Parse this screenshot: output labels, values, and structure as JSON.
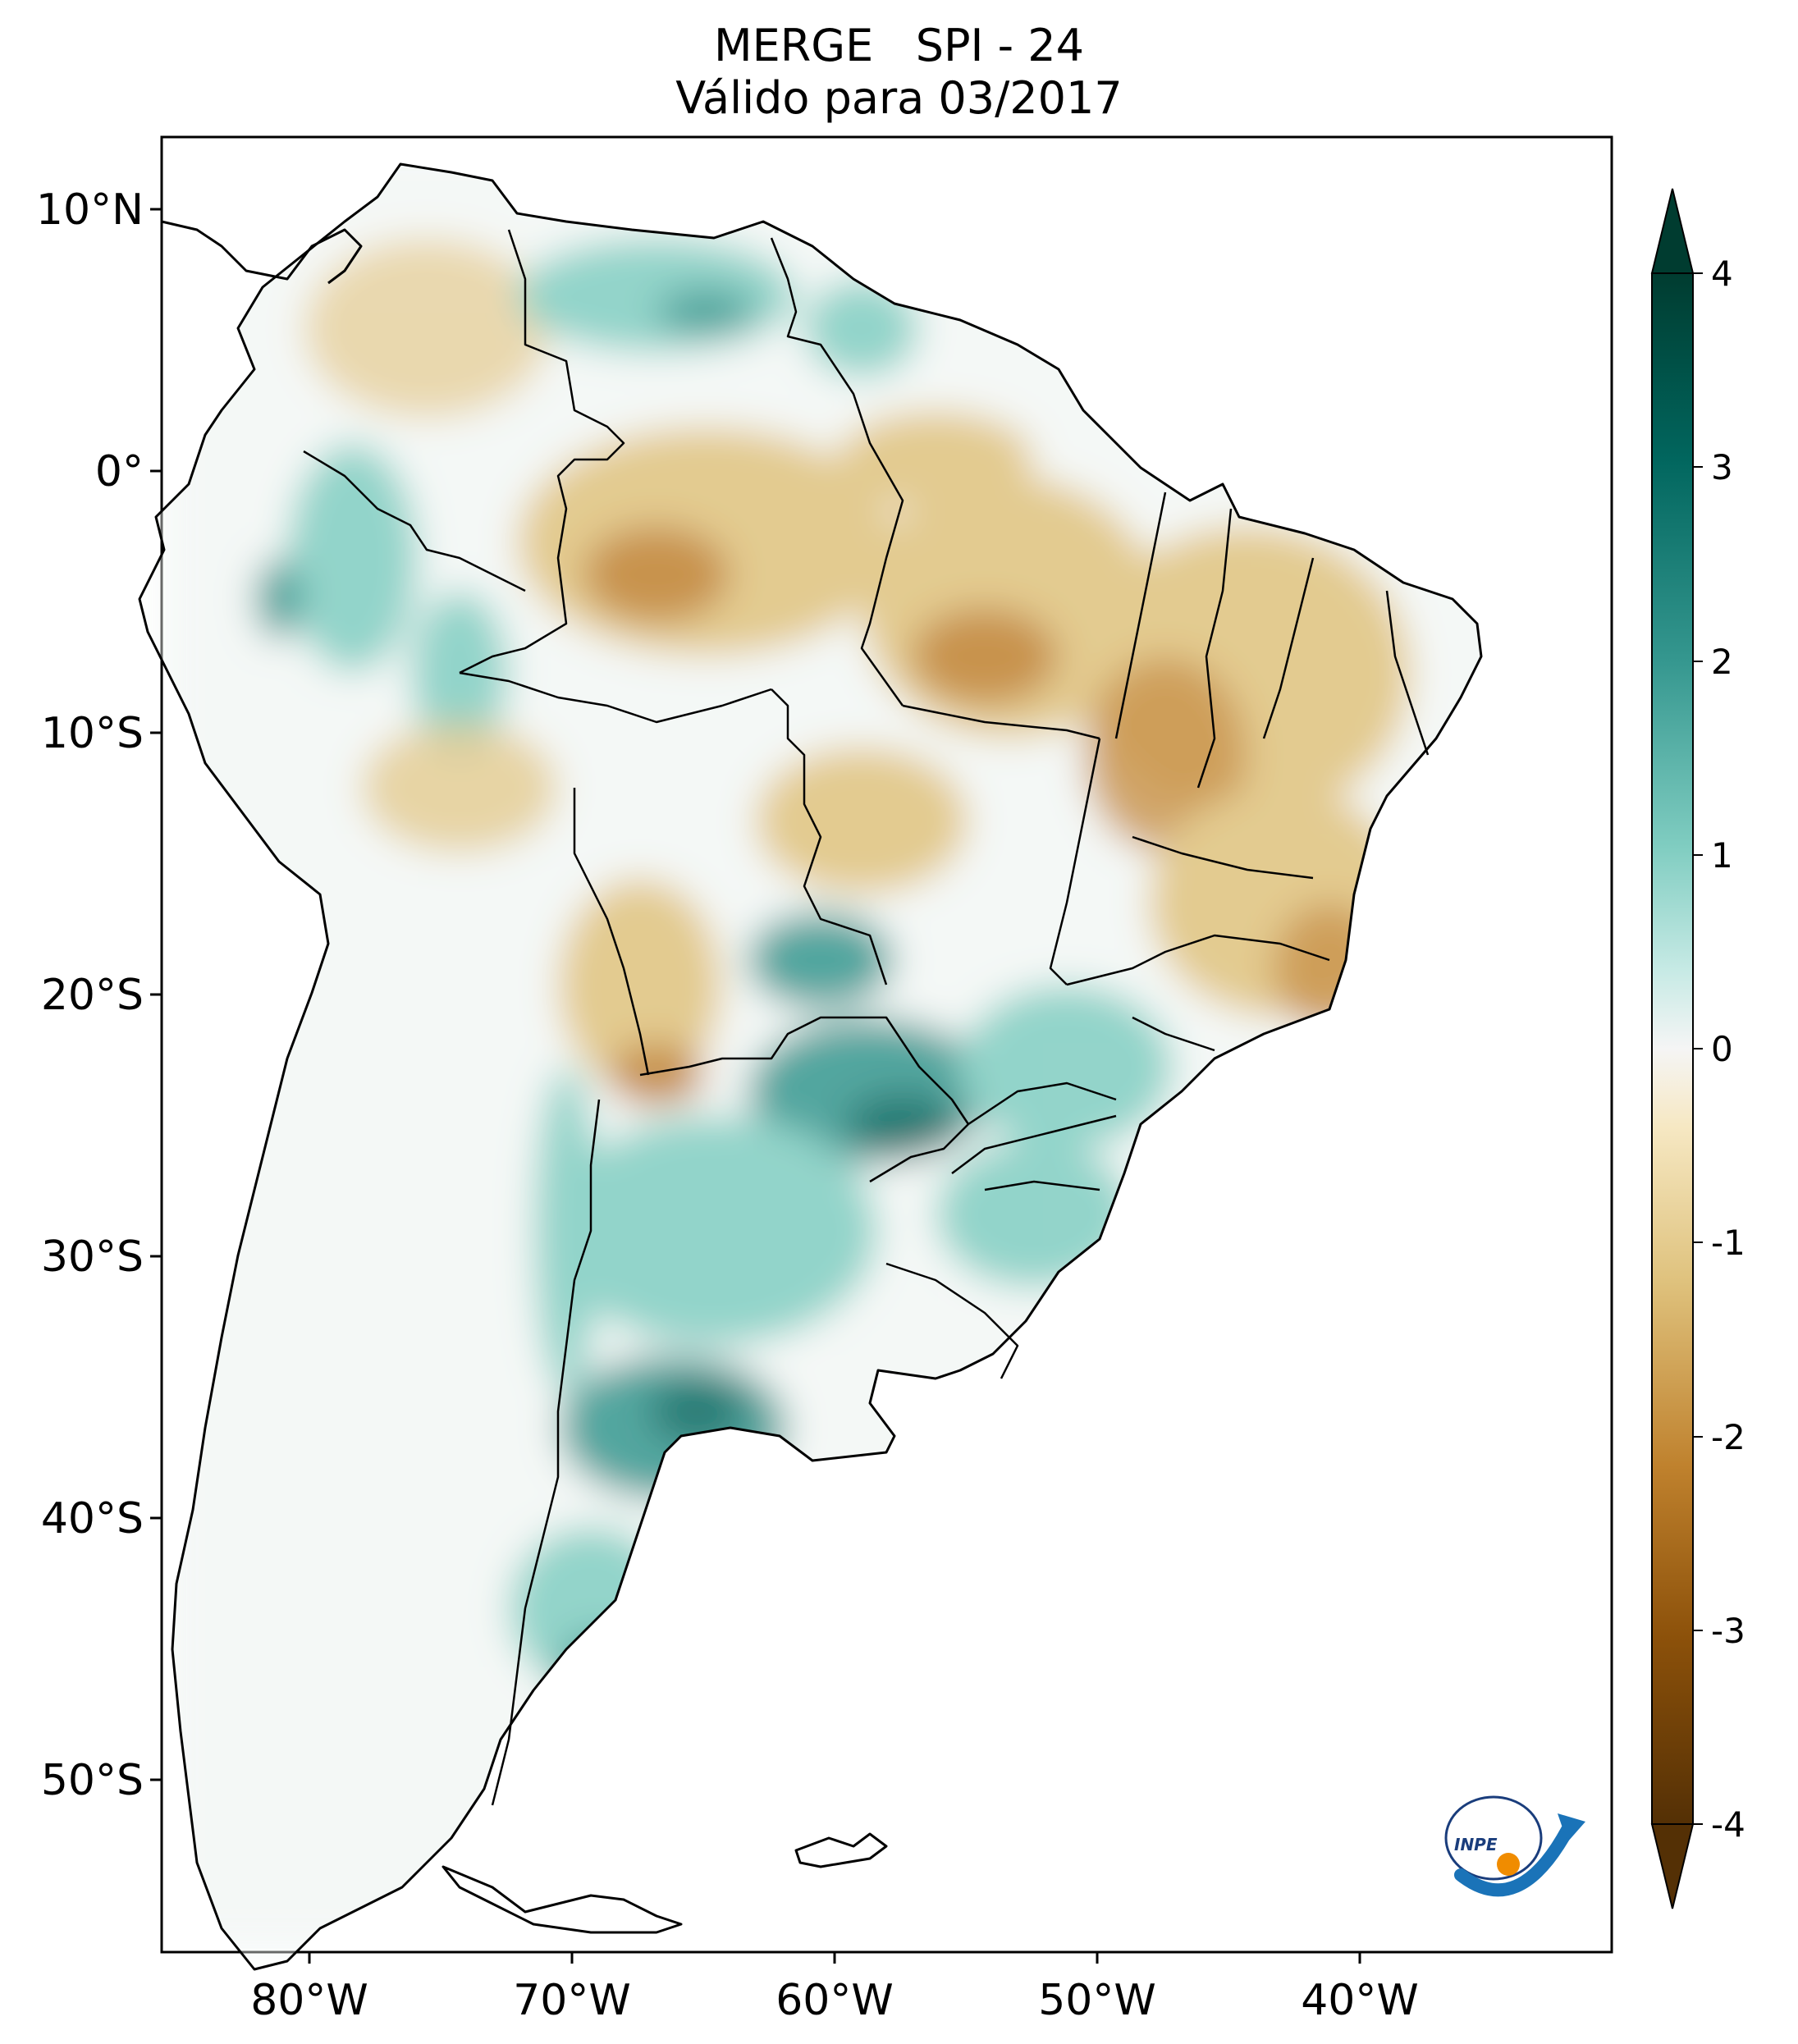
{
  "title": {
    "line1": "MERGE   SPI - 24",
    "line2": "Válido para 03/2017"
  },
  "map": {
    "region": "South America",
    "lon_ticks": [
      "80°W",
      "70°W",
      "60°W",
      "50°W",
      "40°W"
    ],
    "lat_ticks": [
      "10°N",
      "0°",
      "10°S",
      "20°S",
      "30°S",
      "40°S",
      "50°S"
    ],
    "colormap": "BrBG",
    "dry_color": "#8c510a",
    "wet_color": "#01665e"
  },
  "colorbar": {
    "ticks": [
      "4",
      "3",
      "2",
      "1",
      "0",
      "-1",
      "-2",
      "-3",
      "-4"
    ],
    "colors": [
      "#003c30",
      "#01665e",
      "#35978f",
      "#80cdc1",
      "#c7eae5",
      "#f5f5f5",
      "#f6e8c3",
      "#dfc27d",
      "#bf812d",
      "#8c510a",
      "#543005"
    ]
  },
  "logo": {
    "text": "INPE"
  }
}
